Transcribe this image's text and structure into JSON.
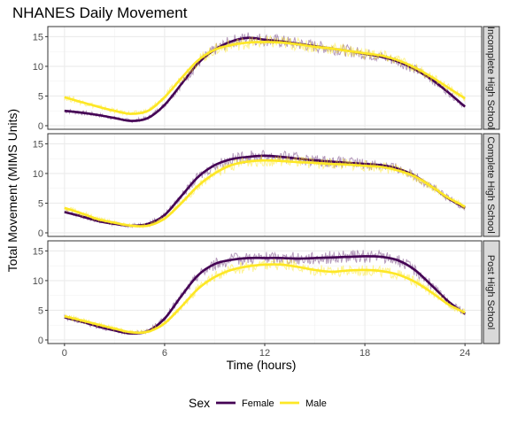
{
  "chart_data": {
    "type": "line",
    "title": "NHANES Daily Movement",
    "xlabel": "Time (hours)",
    "ylabel": "Total Movement (MIMS Units)",
    "xlim": [
      0,
      24
    ],
    "ylim": [
      0,
      16
    ],
    "x_ticks": [
      0,
      6,
      12,
      18,
      24
    ],
    "y_ticks": [
      0,
      5,
      10,
      15
    ],
    "grid": true,
    "legend": {
      "title": "Sex",
      "position": "bottom"
    },
    "series_styles": [
      {
        "name": "Female",
        "color": "#440154"
      },
      {
        "name": "Male",
        "color": "#FDE725"
      }
    ],
    "panels": [
      {
        "label": "Incomplete High School",
        "x": [
          0,
          1,
          2,
          3,
          4,
          5,
          6,
          7,
          8,
          9,
          10,
          11,
          12,
          13,
          14,
          15,
          16,
          17,
          18,
          19,
          20,
          21,
          22,
          23,
          24
        ],
        "series": [
          {
            "name": "Female",
            "values": [
              2.5,
              2.2,
              1.8,
              1.3,
              0.8,
              1.3,
              3.5,
              7.0,
              10.5,
              12.8,
              14.2,
              14.8,
              14.5,
              14.2,
              13.8,
              13.4,
              13.0,
              12.6,
              12.1,
              11.6,
              10.8,
              9.5,
              7.8,
              5.6,
              3.2
            ]
          },
          {
            "name": "Male",
            "values": [
              4.8,
              4.0,
              3.2,
              2.5,
              2.0,
              2.5,
              4.8,
              8.0,
              11.0,
              12.8,
              13.6,
              14.0,
              14.1,
              14.0,
              13.7,
              13.3,
              13.0,
              12.6,
              12.2,
              11.8,
              11.0,
              9.8,
              8.2,
              6.4,
              4.6
            ]
          }
        ]
      },
      {
        "label": "Complete High School",
        "x": [
          0,
          1,
          2,
          3,
          4,
          5,
          6,
          7,
          8,
          9,
          10,
          11,
          12,
          13,
          14,
          15,
          16,
          17,
          18,
          19,
          20,
          21,
          22,
          23,
          24
        ],
        "series": [
          {
            "name": "Female",
            "values": [
              3.5,
              2.8,
              2.0,
              1.5,
              1.2,
              1.5,
              3.0,
              6.2,
              9.4,
              11.4,
              12.4,
              12.8,
              13.0,
              12.8,
              12.5,
              12.2,
              12.0,
              11.8,
              11.6,
              11.4,
              10.8,
              9.6,
              7.8,
              5.8,
              4.2
            ]
          },
          {
            "name": "Male",
            "values": [
              4.2,
              3.3,
              2.3,
              1.7,
              1.2,
              1.2,
              2.4,
              5.0,
              7.9,
              10.0,
              11.4,
              12.0,
              12.2,
              12.1,
              11.9,
              11.8,
              11.6,
              11.5,
              11.3,
              11.1,
              10.5,
              9.5,
              7.8,
              5.9,
              4.4
            ]
          }
        ]
      },
      {
        "label": "Post High School",
        "x": [
          0,
          1,
          2,
          3,
          4,
          5,
          6,
          7,
          8,
          9,
          10,
          11,
          12,
          13,
          14,
          15,
          16,
          17,
          18,
          19,
          20,
          21,
          22,
          23,
          24
        ],
        "series": [
          {
            "name": "Female",
            "values": [
              3.8,
              3.1,
              2.3,
              1.6,
              1.1,
              1.5,
              3.6,
              7.4,
              10.9,
              12.8,
              13.5,
              13.8,
              13.8,
              13.8,
              13.7,
              13.8,
              13.9,
              14.0,
              14.1,
              14.0,
              13.4,
              11.8,
              9.2,
              6.5,
              4.4
            ]
          },
          {
            "name": "Male",
            "values": [
              4.0,
              3.3,
              2.6,
              1.9,
              1.3,
              1.4,
              2.8,
              5.6,
              8.6,
              10.6,
              11.8,
              12.4,
              12.7,
              12.7,
              12.3,
              11.8,
              11.5,
              11.7,
              11.8,
              11.6,
              11.0,
              9.8,
              8.0,
              6.0,
              4.6
            ]
          }
        ]
      }
    ]
  }
}
